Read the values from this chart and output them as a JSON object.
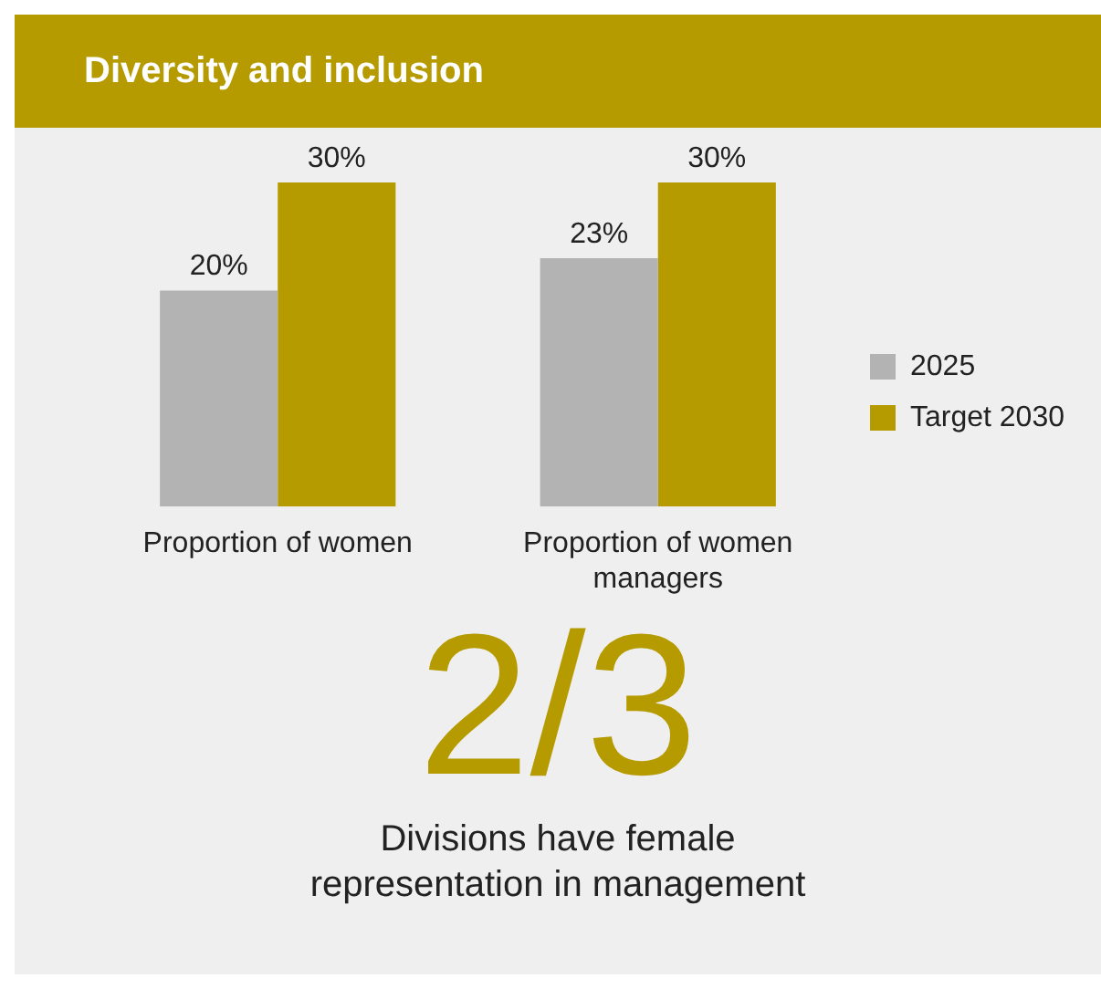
{
  "chart_data": {
    "type": "bar",
    "title": "Diversity and inclusion",
    "categories": [
      "Proportion of women",
      "Proportion of women managers"
    ],
    "series": [
      {
        "name": "2025",
        "color": "#b3b3b3",
        "values": [
          20,
          23
        ],
        "value_labels": [
          "20%",
          "23%"
        ]
      },
      {
        "name": "Target 2030",
        "color": "#b59a00",
        "values": [
          30,
          30
        ],
        "value_labels": [
          "30%",
          "30%"
        ]
      }
    ],
    "legend": "right",
    "annotations": [
      "2/3",
      "Divisions have female representation in management"
    ]
  }
}
